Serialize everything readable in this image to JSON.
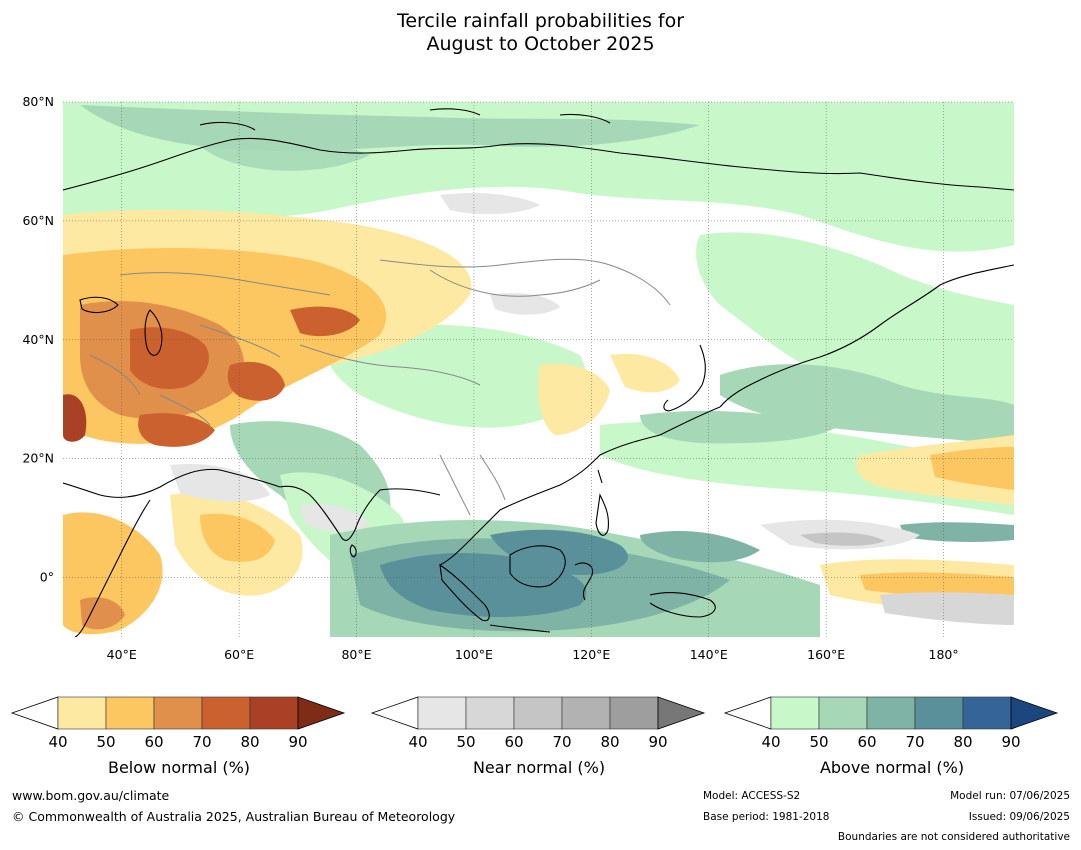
{
  "title": {
    "line1": "Tercile rainfall probabilities for",
    "line2": "August to October 2025"
  },
  "map": {
    "lon_range": [
      30,
      192
    ],
    "lat_range": [
      -10,
      80
    ],
    "lat_ticks": [
      "80°N",
      "60°N",
      "40°N",
      "20°N",
      "0°"
    ],
    "lat_values": [
      80,
      60,
      40,
      20,
      0
    ],
    "lon_ticks": [
      "40°E",
      "60°E",
      "80°E",
      "100°E",
      "120°E",
      "140°E",
      "160°E",
      "180°"
    ],
    "lon_values": [
      40,
      60,
      80,
      100,
      120,
      140,
      160,
      180
    ],
    "grid": true
  },
  "colorbars": [
    {
      "label": "Below normal (%)",
      "ticks": [
        "40",
        "50",
        "60",
        "70",
        "80",
        "90"
      ],
      "colors": [
        "#fde9a1",
        "#fcc760",
        "#e0904a",
        "#cc6130",
        "#aa4124"
      ],
      "extend_color": "#7e2c16"
    },
    {
      "label": "Near normal (%)",
      "ticks": [
        "40",
        "50",
        "60",
        "70",
        "80",
        "90"
      ],
      "colors": [
        "#e6e6e6",
        "#d7d7d7",
        "#c5c5c5",
        "#b2b2b2",
        "#9e9e9e"
      ],
      "extend_color": "#777777"
    },
    {
      "label": "Above normal (%)",
      "ticks": [
        "40",
        "50",
        "60",
        "70",
        "80",
        "90"
      ],
      "colors": [
        "#c8f7c9",
        "#a6d8b8",
        "#7fb3a6",
        "#5a9099",
        "#356598"
      ],
      "extend_color": "#1b467f"
    }
  ],
  "footer": {
    "url": "www.bom.gov.au/climate",
    "copyright": "© Commonwealth of Australia 2025, Australian Bureau of Meteorology",
    "model": "Model: ACCESS-S2",
    "base_period": "Base period: 1981-2018",
    "model_run": "Model run: 07/06/2025",
    "issued": "Issued: 09/06/2025",
    "disclaimer": "Boundaries are not considered authoritative"
  }
}
